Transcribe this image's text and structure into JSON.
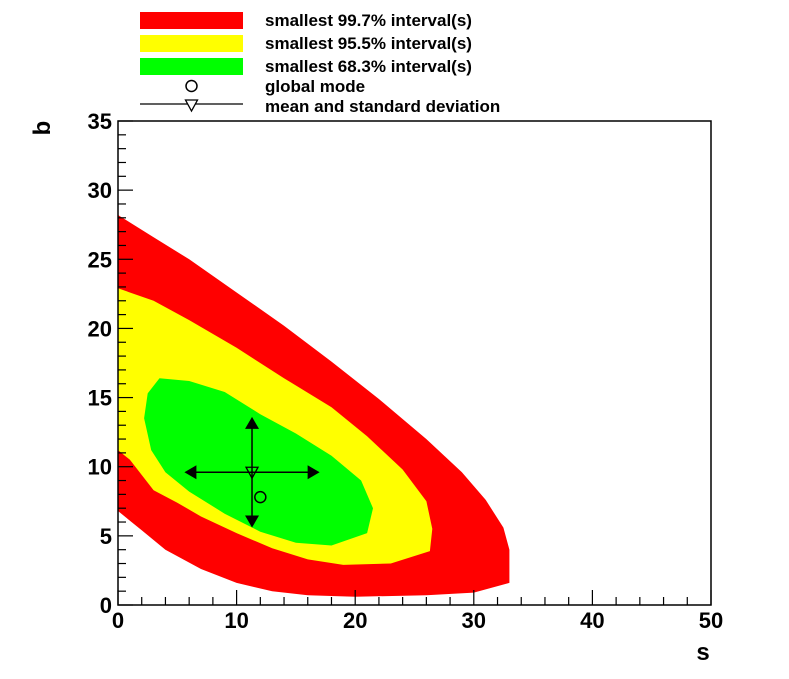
{
  "chart_data": {
    "type": "contour",
    "xlabel": "s",
    "ylabel": "b",
    "xlim": [
      0,
      50
    ],
    "ylim": [
      0,
      35
    ],
    "x_ticks": [
      0,
      10,
      20,
      30,
      40,
      50
    ],
    "y_ticks": [
      0,
      5,
      10,
      15,
      20,
      25,
      30,
      35
    ],
    "grid": false,
    "legend_placement": "top",
    "legend": [
      {
        "key": "ci997",
        "label": "smallest 99.7% interval(s)",
        "color": "#ff0000",
        "symbol": "box"
      },
      {
        "key": "ci955",
        "label": "smallest 95.5% interval(s)",
        "color": "#ffff00",
        "symbol": "box"
      },
      {
        "key": "ci683",
        "label": "smallest 68.3% interval(s)",
        "color": "#00ff00",
        "symbol": "box"
      },
      {
        "key": "mode",
        "label": "global mode",
        "symbol": "open-circle"
      },
      {
        "key": "mean",
        "label": "mean and standard deviation",
        "symbol": "open-triangle-down-with-line"
      }
    ],
    "regions": [
      {
        "name": "smallest 99.7% interval(s)",
        "color": "#ff0000",
        "boundary": [
          [
            0,
            28.2
          ],
          [
            3,
            26.6
          ],
          [
            6,
            25.0
          ],
          [
            10,
            22.6
          ],
          [
            14,
            20.2
          ],
          [
            18,
            17.6
          ],
          [
            22,
            14.9
          ],
          [
            26,
            12.0
          ],
          [
            29,
            9.6
          ],
          [
            31,
            7.6
          ],
          [
            32.5,
            5.6
          ],
          [
            33,
            4.0
          ],
          [
            33,
            1.6
          ],
          [
            30,
            0.9
          ],
          [
            26,
            0.7
          ],
          [
            20,
            0.6
          ],
          [
            16,
            0.7
          ],
          [
            13,
            1.0
          ],
          [
            10,
            1.6
          ],
          [
            7,
            2.6
          ],
          [
            4,
            4.0
          ],
          [
            2,
            5.4
          ],
          [
            0,
            6.8
          ]
        ]
      },
      {
        "name": "smallest 95.5% interval(s)",
        "color": "#ffff00",
        "boundary": [
          [
            0,
            22.9
          ],
          [
            3,
            22.0
          ],
          [
            6,
            20.6
          ],
          [
            10,
            18.6
          ],
          [
            14,
            16.4
          ],
          [
            18,
            14.3
          ],
          [
            21,
            12.2
          ],
          [
            24,
            9.8
          ],
          [
            26,
            7.5
          ],
          [
            26.5,
            5.5
          ],
          [
            26.3,
            3.9
          ],
          [
            23,
            3.0
          ],
          [
            19,
            2.9
          ],
          [
            16,
            3.3
          ],
          [
            13,
            4.1
          ],
          [
            10,
            5.2
          ],
          [
            7,
            6.4
          ],
          [
            5,
            7.4
          ],
          [
            3,
            8.3
          ],
          [
            1,
            10.5
          ],
          [
            0,
            11.2
          ]
        ]
      },
      {
        "name": "smallest 68.3% interval(s)",
        "color": "#00ff00",
        "boundary": [
          [
            3.5,
            16.4
          ],
          [
            6,
            16.2
          ],
          [
            9,
            15.4
          ],
          [
            12,
            13.8
          ],
          [
            15,
            12.4
          ],
          [
            18,
            10.8
          ],
          [
            20.5,
            9.0
          ],
          [
            21.5,
            7.0
          ],
          [
            21,
            5.2
          ],
          [
            18,
            4.3
          ],
          [
            15,
            4.5
          ],
          [
            12,
            5.3
          ],
          [
            9,
            6.6
          ],
          [
            6,
            8.2
          ],
          [
            4,
            9.6
          ],
          [
            2.8,
            11.2
          ],
          [
            2.2,
            13.5
          ],
          [
            2.5,
            15.3
          ]
        ]
      }
    ],
    "global_mode": {
      "s": 12.0,
      "b": 7.8
    },
    "mean": {
      "s": 11.3,
      "b": 9.6,
      "s_sd": 5.7,
      "b_sd": 4.0
    }
  }
}
